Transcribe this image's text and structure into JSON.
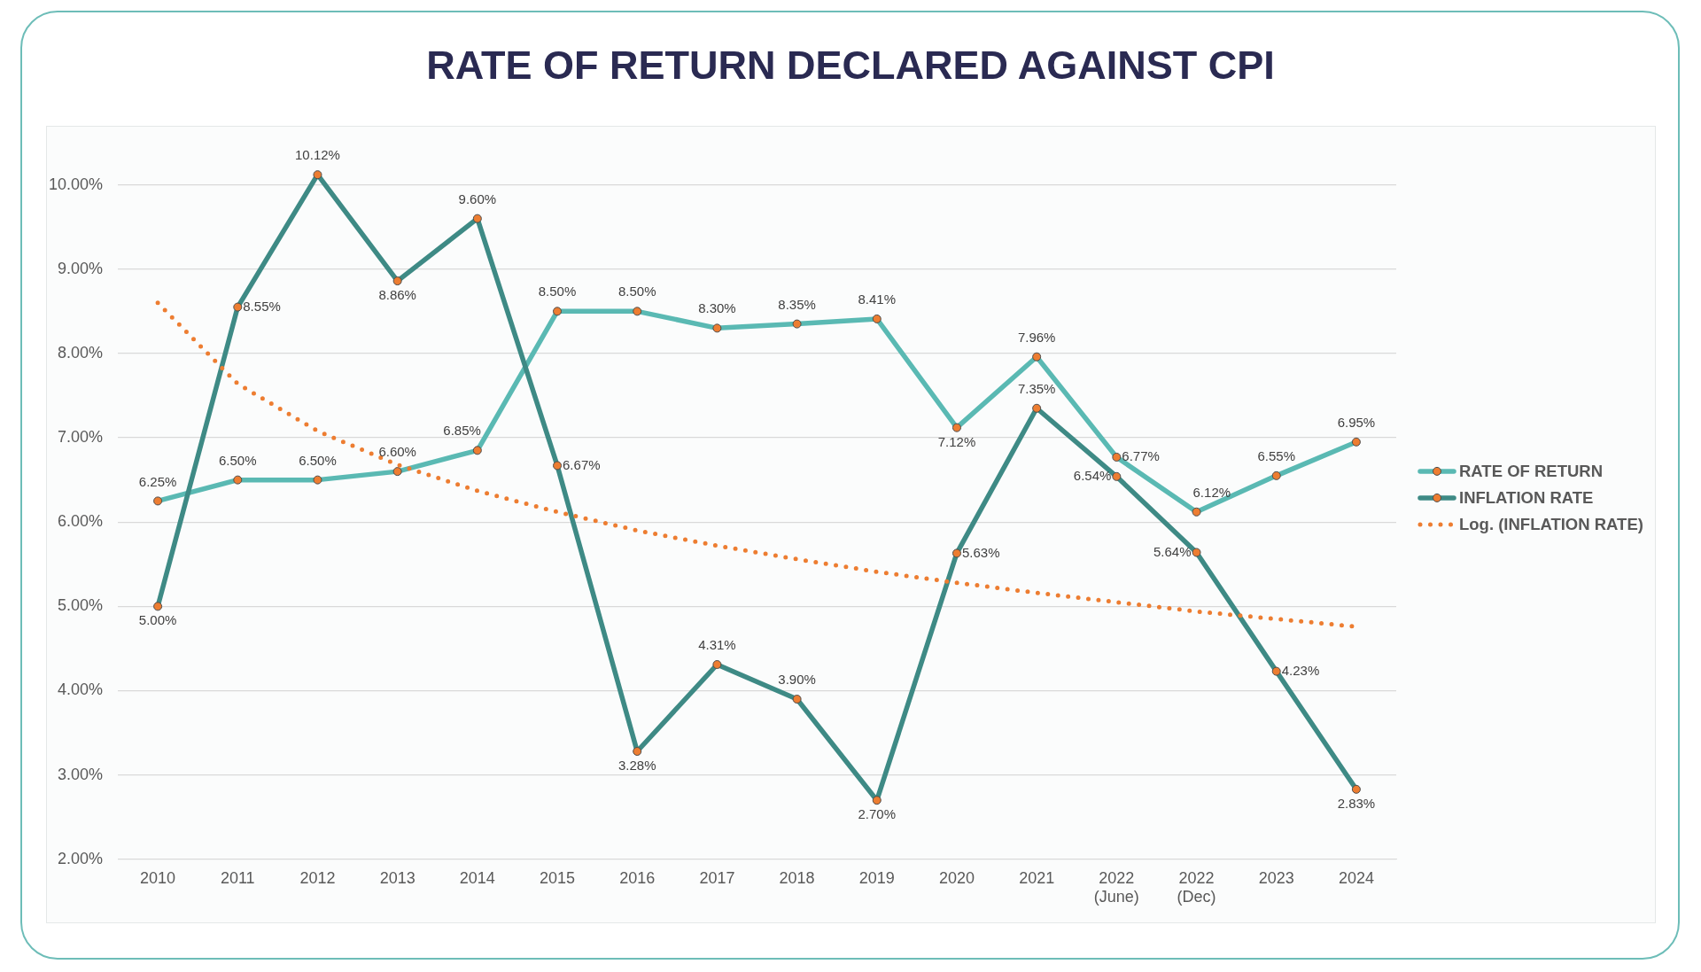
{
  "chart_data": {
    "type": "line",
    "title": "RATE OF RETURN DECLARED AGAINST CPI",
    "categories": [
      "2010",
      "2011",
      "2012",
      "2013",
      "2014",
      "2015",
      "2016",
      "2017",
      "2018",
      "2019",
      "2020",
      "2021",
      "2022\n(June)",
      "2022\n(Dec)",
      "2023",
      "2024"
    ],
    "series": [
      {
        "name": "RATE OF RETURN",
        "color": "#5ab9b3",
        "values": [
          6.25,
          6.5,
          6.5,
          6.6,
          6.85,
          8.5,
          8.5,
          8.3,
          8.35,
          8.41,
          7.12,
          7.96,
          6.77,
          6.12,
          6.55,
          6.95
        ],
        "value_labels": [
          "6.25%",
          "6.50%",
          "6.50%",
          "6.60%",
          "6.85%",
          "8.50%",
          "8.50%",
          "8.30%",
          "8.35%",
          "8.41%",
          "7.12%",
          "7.96%",
          "6.77%",
          "6.12%",
          "6.55%",
          "6.95%"
        ],
        "colors": [
          "#ed7d31",
          "#ed7d31",
          "#ed7d31",
          "#ed7d31",
          "#ed7d31",
          "#ed7d31",
          "#ed7d31",
          "#ed7d31",
          "#ed7d31",
          "#ed7d31",
          "#ed7d31",
          "#ed7d31",
          "#ed7d31",
          "#ed7d31",
          "#ed7d31",
          "#ed7d31"
        ]
      },
      {
        "name": "INFLATION RATE",
        "color": "#3e8a85",
        "values": [
          5.0,
          8.55,
          10.12,
          8.86,
          9.6,
          6.67,
          3.28,
          4.31,
          3.9,
          2.7,
          5.63,
          7.35,
          6.54,
          5.64,
          4.23,
          2.83
        ],
        "value_labels": [
          "5.00%",
          "8.55%",
          "10.12%",
          "8.86%",
          "9.60%",
          "6.67%",
          "3.28%",
          "4.31%",
          "3.90%",
          "2.70%",
          "5.63%",
          "7.35%",
          "6.54%",
          "5.64%",
          "4.23%",
          "2.83%"
        ],
        "colors": [
          "#ed7d31",
          "#ed7d31",
          "#ed7d31",
          "#ed7d31",
          "#ed7d31",
          "#ed7d31",
          "#ed7d31",
          "#ed7d31",
          "#ed7d31",
          "#ed7d31",
          "#ed7d31",
          "#ed7d31",
          "#ed7d31",
          "#ed7d31",
          "#ed7d31",
          "#ed7d31"
        ]
      },
      {
        "name": "Log. (INFLATION RATE)",
        "type": "line",
        "color": "#ed7d31",
        "line_style": "dotted",
        "marker": "none",
        "values": [
          8.6,
          7.64,
          7.08,
          6.68,
          6.37,
          6.12,
          5.9,
          5.72,
          5.56,
          5.41,
          5.28,
          5.16,
          5.05,
          4.94,
          4.85,
          4.76
        ]
      }
    ],
    "ylim": [
      2,
      10.7
    ],
    "yticks": [
      {
        "value": 2,
        "label": "2.00%"
      },
      {
        "value": 3,
        "label": "3.00%"
      },
      {
        "value": 4,
        "label": "4.00%"
      },
      {
        "value": 5,
        "label": "5.00%"
      },
      {
        "value": 6,
        "label": "6.00%"
      },
      {
        "value": 7,
        "label": "7.00%"
      },
      {
        "value": 8,
        "label": "8.00%"
      },
      {
        "value": 9,
        "label": "9.00%"
      },
      {
        "value": 10,
        "label": "10.00%"
      }
    ],
    "grid": "y",
    "legend": "right",
    "marker": "circle",
    "line_style": "solid"
  }
}
